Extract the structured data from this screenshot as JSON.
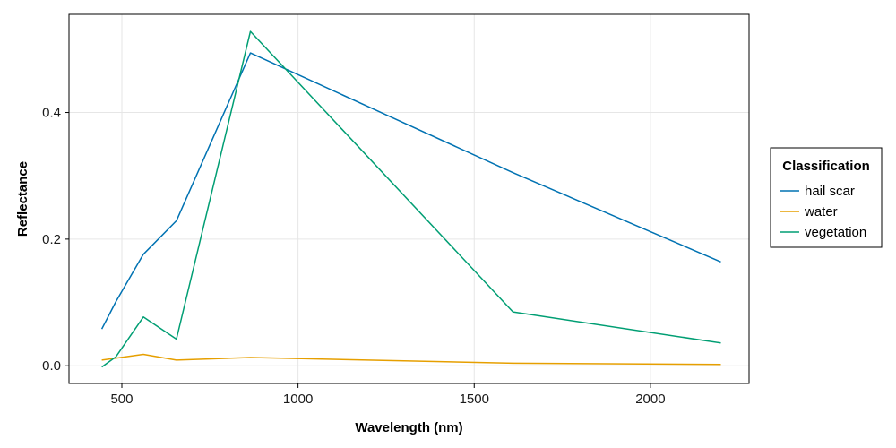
{
  "chart_data": {
    "type": "line",
    "xlabel": "Wavelength (nm)",
    "ylabel": "Reflectance",
    "xlim": [
      350,
      2280
    ],
    "ylim": [
      -0.028,
      0.555
    ],
    "xticks": [
      500,
      1000,
      1500,
      2000
    ],
    "yticks": [
      0.0,
      0.2,
      0.4
    ],
    "xtick_labels": [
      "500",
      "1000",
      "1500",
      "2000"
    ],
    "ytick_labels": [
      "0.0",
      "0.2",
      "0.4"
    ],
    "grid": true,
    "legend": {
      "title": "Classification",
      "placement": "right"
    },
    "series": [
      {
        "name": "hail scar",
        "color": "#0072b2",
        "x": [
          443,
          483,
          561,
          655,
          865,
          1610,
          2200
        ],
        "y": [
          0.058,
          0.101,
          0.176,
          0.229,
          0.494,
          0.305,
          0.164
        ]
      },
      {
        "name": "water",
        "color": "#e69f00",
        "x": [
          443,
          483,
          561,
          655,
          865,
          1610,
          2200
        ],
        "y": [
          0.009,
          0.012,
          0.018,
          0.009,
          0.013,
          0.004,
          0.002
        ]
      },
      {
        "name": "vegetation",
        "color": "#009e73",
        "x": [
          443,
          483,
          561,
          655,
          865,
          1610,
          2200
        ],
        "y": [
          -0.002,
          0.014,
          0.077,
          0.042,
          0.528,
          0.085,
          0.036
        ]
      }
    ]
  }
}
